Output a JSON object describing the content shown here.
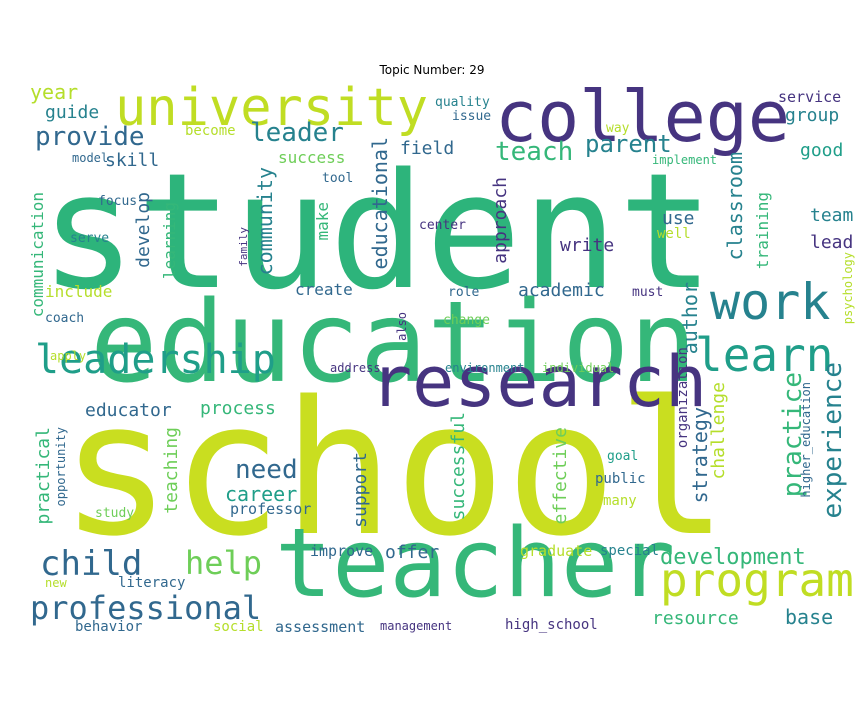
{
  "title": "Topic Number: 29",
  "palette": {
    "dark_purple": "#463480",
    "blue": "#31688e",
    "teal": "#26828e",
    "green_teal": "#1f9e89",
    "green": "#35b779",
    "light_green": "#6ece58",
    "yellow_green": "#b5de2b",
    "yellow": "#cfe11c"
  },
  "words": [
    {
      "id": "student",
      "text": "student",
      "color": "#2db47b"
    },
    {
      "id": "school",
      "text": "school",
      "color": "#c9de20"
    },
    {
      "id": "education",
      "text": "education",
      "color": "#35b779"
    },
    {
      "id": "teacher",
      "text": "teacher",
      "color": "#35b779"
    },
    {
      "id": "college",
      "text": "college",
      "color": "#463480"
    },
    {
      "id": "university",
      "text": "university",
      "color": "#c0dd23"
    },
    {
      "id": "research",
      "text": "research",
      "color": "#463480"
    },
    {
      "id": "work",
      "text": "work",
      "color": "#26828e"
    },
    {
      "id": "learn",
      "text": "learn",
      "color": "#1f9e89"
    },
    {
      "id": "leadership",
      "text": "leadership",
      "color": "#1f9e89"
    },
    {
      "id": "program",
      "text": "program",
      "color": "#c0dd23"
    },
    {
      "id": "professional",
      "text": "professional",
      "color": "#31688e"
    },
    {
      "id": "child",
      "text": "child",
      "color": "#31688e"
    },
    {
      "id": "help",
      "text": "help",
      "color": "#6ece58"
    },
    {
      "id": "provide",
      "text": "provide",
      "color": "#31688e"
    },
    {
      "id": "leader",
      "text": "leader",
      "color": "#26828e"
    },
    {
      "id": "teach",
      "text": "teach",
      "color": "#35b779"
    },
    {
      "id": "parent",
      "text": "parent",
      "color": "#26828e"
    },
    {
      "id": "experience",
      "text": "experience",
      "color": "#26828e"
    },
    {
      "id": "practice",
      "text": "practice",
      "color": "#35b779"
    },
    {
      "id": "development",
      "text": "development",
      "color": "#35b779"
    },
    {
      "id": "need",
      "text": "need",
      "color": "#31688e"
    },
    {
      "id": "career",
      "text": "career",
      "color": "#1f9e89"
    },
    {
      "id": "educator",
      "text": "educator",
      "color": "#31688e"
    },
    {
      "id": "process",
      "text": "process",
      "color": "#35b779"
    },
    {
      "id": "community",
      "text": "community",
      "color": "#26828e"
    },
    {
      "id": "educational",
      "text": "educational",
      "color": "#31688e"
    },
    {
      "id": "academic",
      "text": "academic",
      "color": "#31688e"
    },
    {
      "id": "author",
      "text": "author",
      "color": "#26828e"
    },
    {
      "id": "classroom",
      "text": "classroom",
      "color": "#26828e"
    },
    {
      "id": "strategy",
      "text": "strategy",
      "color": "#31688e"
    },
    {
      "id": "year",
      "text": "year",
      "color": "#b5de2b"
    },
    {
      "id": "guide",
      "text": "guide",
      "color": "#26828e"
    },
    {
      "id": "skill",
      "text": "skill",
      "color": "#31688e"
    },
    {
      "id": "success",
      "text": "success",
      "color": "#6ece58"
    },
    {
      "id": "field",
      "text": "field",
      "color": "#31688e"
    },
    {
      "id": "service",
      "text": "service",
      "color": "#463480"
    },
    {
      "id": "group",
      "text": "group",
      "color": "#26828e"
    },
    {
      "id": "good",
      "text": "good",
      "color": "#1f9e89"
    },
    {
      "id": "team",
      "text": "team",
      "color": "#26828e"
    },
    {
      "id": "lead",
      "text": "lead",
      "color": "#463480"
    },
    {
      "id": "use",
      "text": "use",
      "color": "#31688e"
    },
    {
      "id": "write",
      "text": "write",
      "color": "#463480"
    },
    {
      "id": "approach",
      "text": "approach",
      "color": "#463480"
    },
    {
      "id": "develop",
      "text": "develop",
      "color": "#31688e"
    },
    {
      "id": "learning",
      "text": "learning",
      "color": "#35b779"
    },
    {
      "id": "make",
      "text": "make",
      "color": "#35b779"
    },
    {
      "id": "create",
      "text": "create",
      "color": "#31688e"
    },
    {
      "id": "include",
      "text": "include",
      "color": "#b5de2b"
    },
    {
      "id": "communication",
      "text": "communication",
      "color": "#35b779"
    },
    {
      "id": "training",
      "text": "training",
      "color": "#35b779"
    },
    {
      "id": "support",
      "text": "support",
      "color": "#31688e"
    },
    {
      "id": "successful",
      "text": "successful",
      "color": "#35b779"
    },
    {
      "id": "effective",
      "text": "effective",
      "color": "#6ece58"
    },
    {
      "id": "challenge",
      "text": "challenge",
      "color": "#b5de2b"
    },
    {
      "id": "teaching",
      "text": "teaching",
      "color": "#6ece58"
    },
    {
      "id": "practical",
      "text": "practical",
      "color": "#35b779"
    },
    {
      "id": "professor",
      "text": "professor",
      "color": "#31688e"
    },
    {
      "id": "offer",
      "text": "offer",
      "color": "#31688e"
    },
    {
      "id": "improve",
      "text": "improve",
      "color": "#31688e"
    },
    {
      "id": "graduate",
      "text": "graduate",
      "color": "#b5de2b"
    },
    {
      "id": "special",
      "text": "special",
      "color": "#26828e"
    },
    {
      "id": "resource",
      "text": "resource",
      "color": "#35b779"
    },
    {
      "id": "base",
      "text": "base",
      "color": "#26828e"
    },
    {
      "id": "literacy",
      "text": "literacy",
      "color": "#31688e"
    },
    {
      "id": "behavior",
      "text": "behavior",
      "color": "#31688e"
    },
    {
      "id": "social",
      "text": "social",
      "color": "#b5de2b"
    },
    {
      "id": "assessment",
      "text": "assessment",
      "color": "#31688e"
    },
    {
      "id": "management",
      "text": "management",
      "color": "#463480"
    },
    {
      "id": "high_school",
      "text": "high_school",
      "color": "#463480"
    },
    {
      "id": "quality",
      "text": "quality",
      "color": "#26828e"
    },
    {
      "id": "issue",
      "text": "issue",
      "color": "#31688e"
    },
    {
      "id": "become",
      "text": "become",
      "color": "#b5de2b"
    },
    {
      "id": "model",
      "text": "model",
      "color": "#31688e"
    },
    {
      "id": "way",
      "text": "way",
      "color": "#b5de2b"
    },
    {
      "id": "implement",
      "text": "implement",
      "color": "#35b779"
    },
    {
      "id": "tool",
      "text": "tool",
      "color": "#31688e"
    },
    {
      "id": "focus",
      "text": "focus",
      "color": "#31688e"
    },
    {
      "id": "serve",
      "text": "serve",
      "color": "#26828e"
    },
    {
      "id": "family",
      "text": "family",
      "color": "#463480"
    },
    {
      "id": "center",
      "text": "center",
      "color": "#463480"
    },
    {
      "id": "well",
      "text": "well",
      "color": "#b5de2b"
    },
    {
      "id": "role",
      "text": "role",
      "color": "#31688e"
    },
    {
      "id": "must",
      "text": "must",
      "color": "#463480"
    },
    {
      "id": "coach",
      "text": "coach",
      "color": "#31688e"
    },
    {
      "id": "apply",
      "text": "apply",
      "color": "#b5de2b"
    },
    {
      "id": "also",
      "text": "also",
      "color": "#463480"
    },
    {
      "id": "change",
      "text": "change",
      "color": "#6ece58"
    },
    {
      "id": "address",
      "text": "address",
      "color": "#463480"
    },
    {
      "id": "environment",
      "text": "environment",
      "color": "#26828e"
    },
    {
      "id": "individual",
      "text": "individual",
      "color": "#6ece58"
    },
    {
      "id": "organization",
      "text": "organization",
      "color": "#463480"
    },
    {
      "id": "psychology",
      "text": "psychology",
      "color": "#b5de2b"
    },
    {
      "id": "higher_education",
      "text": "higher_education",
      "color": "#31688e"
    },
    {
      "id": "goal",
      "text": "goal",
      "color": "#1f9e89"
    },
    {
      "id": "public",
      "text": "public",
      "color": "#31688e"
    },
    {
      "id": "many",
      "text": "many",
      "color": "#b5de2b"
    },
    {
      "id": "opportunity",
      "text": "opportunity",
      "color": "#31688e"
    },
    {
      "id": "study",
      "text": "study",
      "color": "#6ece58"
    },
    {
      "id": "new",
      "text": "new",
      "color": "#b5de2b"
    }
  ]
}
